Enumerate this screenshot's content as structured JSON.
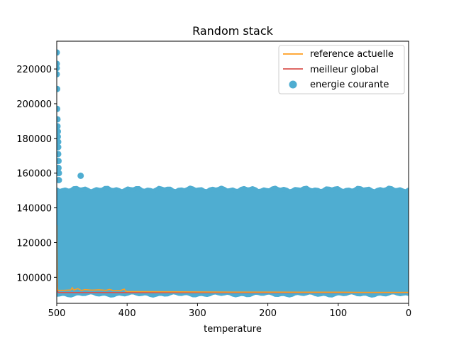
{
  "chart_data": {
    "type": "scatter",
    "title": "Random stack",
    "xlabel": "temperature",
    "ylabel": "",
    "xlim": [
      500,
      0
    ],
    "ylim": [
      85000,
      236000
    ],
    "x_inverted": true,
    "x_ticks": [
      500,
      400,
      300,
      200,
      100,
      0
    ],
    "y_ticks": [
      100000,
      120000,
      140000,
      160000,
      180000,
      200000,
      220000
    ],
    "grid": false,
    "legend_position": "top-right",
    "series": [
      {
        "name": "reference actuelle",
        "kind": "line",
        "color": "#ff9e1f",
        "x": [
          500,
          499.5,
          499,
          498,
          490,
          480,
          478,
          476,
          470,
          465,
          460,
          450,
          440,
          430,
          425,
          420,
          410,
          404,
          402,
          400,
          350,
          300,
          250,
          200,
          150,
          100,
          50,
          0
        ],
        "y": [
          130000,
          95000,
          92800,
          92500,
          92500,
          92700,
          94000,
          92600,
          93500,
          92400,
          92900,
          92600,
          92800,
          92500,
          93000,
          92400,
          92300,
          93200,
          92000,
          91800,
          91700,
          91600,
          91500,
          91500,
          91400,
          91400,
          91300,
          91300
        ]
      },
      {
        "name": "meilleur global",
        "kind": "line",
        "color": "#d9534f",
        "x": [
          500,
          499.5,
          499,
          498,
          0
        ],
        "y": [
          130000,
          100000,
          92500,
          91200,
          91200
        ]
      },
      {
        "name": "energie courante",
        "kind": "scatter",
        "color": "#4fadd1",
        "band": {
          "low": 90500,
          "high": 150500
        },
        "outliers_x": [
          500,
          500,
          500,
          500,
          499.5,
          499.5,
          499,
          499,
          498.5,
          498.5,
          498,
          498,
          498,
          497.5,
          497.5,
          497,
          497,
          466
        ],
        "outliers_y": [
          229500,
          223000,
          220500,
          217000,
          208500,
          197000,
          191000,
          187000,
          184000,
          181000,
          178000,
          175000,
          171000,
          167000,
          163000,
          160000,
          156000,
          158500
        ]
      }
    ]
  }
}
